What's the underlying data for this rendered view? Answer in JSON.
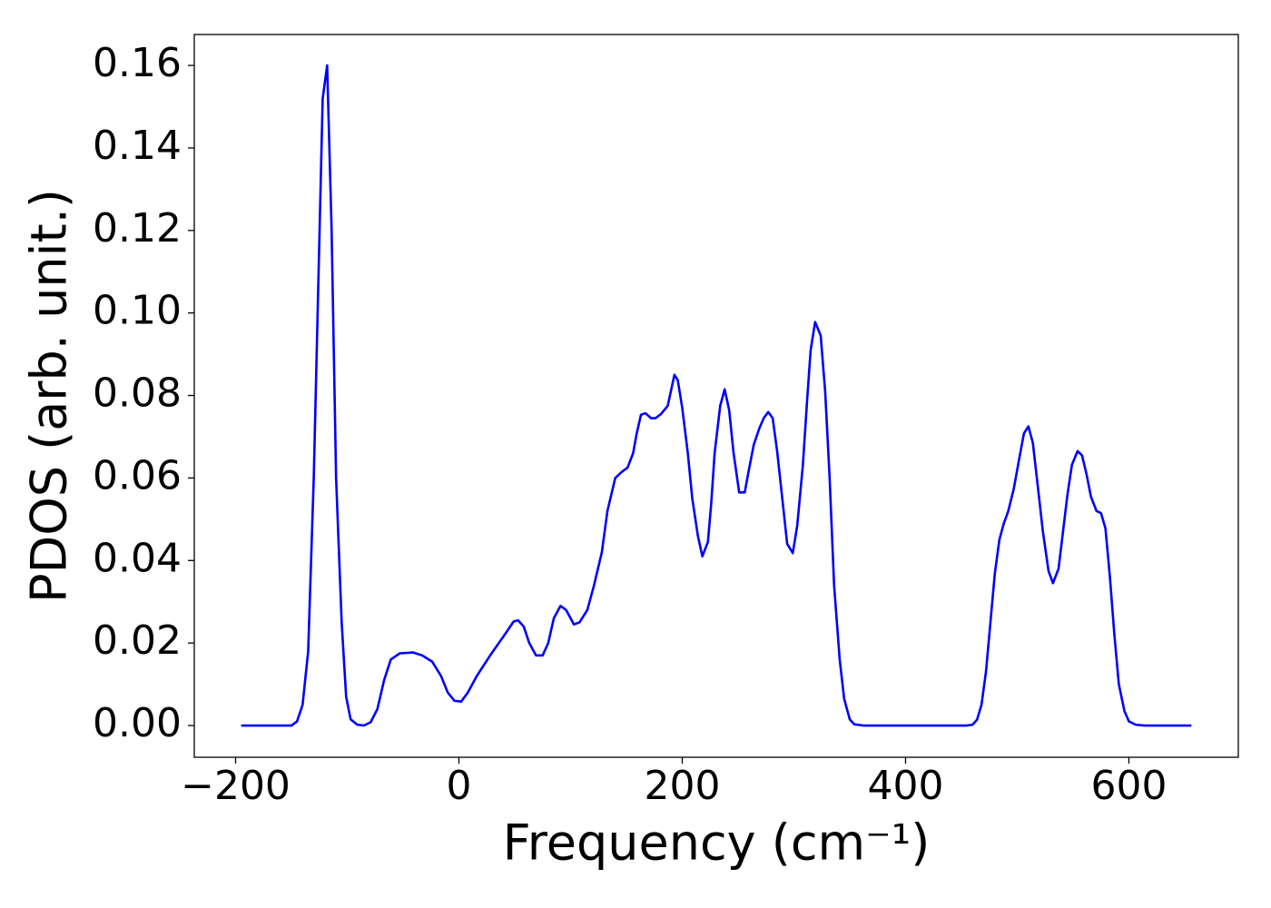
{
  "chart_data": {
    "type": "line",
    "xlabel": "Frequency (cm⁻¹)",
    "ylabel": "PDOS (arb. unit.)",
    "xlim": [
      -237,
      698
    ],
    "ylim": [
      -0.0077,
      0.1675
    ],
    "xticks": [
      {
        "value": -200,
        "label": "−200"
      },
      0,
      200,
      400,
      600
    ],
    "yticks": [
      {
        "value": 0,
        "label": "0.00"
      },
      {
        "value": 0.02,
        "label": "0.02"
      },
      {
        "value": 0.04,
        "label": "0.04"
      },
      {
        "value": 0.06,
        "label": "0.06"
      },
      {
        "value": 0.08,
        "label": "0.08"
      },
      {
        "value": 0.1,
        "label": "0.10"
      },
      {
        "value": 0.12,
        "label": "0.12"
      },
      {
        "value": 0.14,
        "label": "0.14"
      },
      {
        "value": 0.16,
        "label": "0.16"
      }
    ],
    "grid": false,
    "x": [
      -195,
      -150,
      -145,
      -140,
      -135,
      -130,
      -122,
      -118,
      -114,
      -110,
      -105,
      -101,
      -97,
      -91,
      -85,
      -79,
      -73,
      -67,
      -61,
      -53,
      -41,
      -33,
      -24,
      -16,
      -10,
      -4,
      2,
      8,
      16,
      28,
      41,
      49,
      53,
      58,
      63,
      69,
      75,
      80,
      85,
      91,
      96,
      103,
      108,
      115,
      121,
      128,
      133,
      140,
      146,
      151,
      156,
      159,
      163,
      167,
      172,
      176,
      181,
      187,
      193,
      196,
      200,
      205,
      209,
      214,
      218,
      223,
      226,
      229,
      234,
      238,
      242,
      246,
      251,
      256,
      259,
      264,
      269,
      273,
      277,
      281,
      285,
      290,
      294,
      299,
      303,
      308,
      312,
      315,
      319,
      324,
      328,
      332,
      336,
      341,
      345,
      350,
      354,
      362,
      455,
      460,
      464,
      468,
      472,
      476,
      480,
      484,
      488,
      492,
      497,
      502,
      506,
      510,
      514,
      518,
      523,
      528,
      532,
      537,
      541,
      545,
      549,
      554,
      558,
      562,
      566,
      571,
      575,
      579,
      583,
      587,
      591,
      596,
      600,
      606,
      614,
      656
    ],
    "series": [
      {
        "name": "PDOS",
        "color": "#0000ff",
        "values": [
          0,
          0,
          0.001,
          0.005,
          0.018,
          0.06,
          0.152,
          0.16,
          0.12,
          0.06,
          0.025,
          0.007,
          0.0015,
          0.0002,
          0,
          0.0008,
          0.004,
          0.011,
          0.016,
          0.0175,
          0.0177,
          0.017,
          0.0155,
          0.012,
          0.008,
          0.006,
          0.0058,
          0.008,
          0.012,
          0.017,
          0.022,
          0.0252,
          0.0255,
          0.024,
          0.02,
          0.017,
          0.017,
          0.02,
          0.026,
          0.029,
          0.028,
          0.0245,
          0.025,
          0.028,
          0.034,
          0.042,
          0.052,
          0.06,
          0.0615,
          0.0625,
          0.066,
          0.0705,
          0.0753,
          0.0757,
          0.0745,
          0.0745,
          0.0755,
          0.0775,
          0.085,
          0.0837,
          0.077,
          0.066,
          0.055,
          0.046,
          0.041,
          0.0445,
          0.054,
          0.066,
          0.0775,
          0.0815,
          0.0765,
          0.066,
          0.0565,
          0.0565,
          0.061,
          0.068,
          0.072,
          0.0745,
          0.076,
          0.0745,
          0.0665,
          0.054,
          0.044,
          0.0418,
          0.0485,
          0.063,
          0.0795,
          0.091,
          0.0978,
          0.0945,
          0.081,
          0.06,
          0.034,
          0.016,
          0.0065,
          0.0015,
          0.0003,
          0,
          0,
          0.0002,
          0.0014,
          0.005,
          0.013,
          0.025,
          0.037,
          0.045,
          0.049,
          0.052,
          0.0575,
          0.065,
          0.0708,
          0.0725,
          0.0685,
          0.059,
          0.047,
          0.0375,
          0.0345,
          0.038,
          0.047,
          0.056,
          0.0632,
          0.0665,
          0.0655,
          0.061,
          0.0555,
          0.052,
          0.0515,
          0.0478,
          0.036,
          0.022,
          0.01,
          0.0035,
          0.001,
          0.0002,
          0,
          0
        ]
      }
    ]
  }
}
